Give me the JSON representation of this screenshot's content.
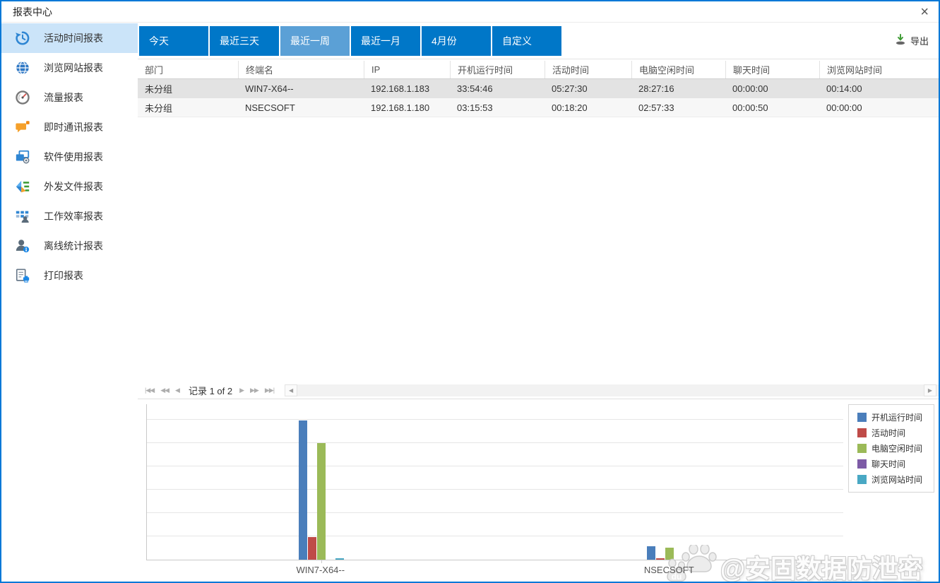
{
  "window": {
    "title": "报表中心",
    "close_glyph": "×"
  },
  "sidebar": {
    "items": [
      {
        "label": "活动时间报表",
        "icon": "history-icon",
        "selected": true
      },
      {
        "label": "浏览网站报表",
        "icon": "globe-icon",
        "selected": false
      },
      {
        "label": "流量报表",
        "icon": "gauge-icon",
        "selected": false
      },
      {
        "label": "即时通讯报表",
        "icon": "chat-icon",
        "selected": false
      },
      {
        "label": "软件使用报表",
        "icon": "software-usage-icon",
        "selected": false
      },
      {
        "label": "外发文件报表",
        "icon": "outgoing-files-icon",
        "selected": false
      },
      {
        "label": "工作效率报表",
        "icon": "work-efficiency-icon",
        "selected": false
      },
      {
        "label": "离线统计报表",
        "icon": "offline-stats-icon",
        "selected": false
      },
      {
        "label": "打印报表",
        "icon": "print-report-icon",
        "selected": false
      }
    ]
  },
  "toolbar": {
    "tabs": [
      {
        "label": "今天",
        "selected": false
      },
      {
        "label": "最近三天",
        "selected": false
      },
      {
        "label": "最近一周",
        "selected": true
      },
      {
        "label": "最近一月",
        "selected": false
      },
      {
        "label": "4月份",
        "selected": false
      },
      {
        "label": "自定义",
        "selected": false
      }
    ],
    "export_label": "导出",
    "export_icon": "download-icon"
  },
  "table": {
    "columns": [
      "部门",
      "终端名",
      "IP",
      "开机运行时间",
      "活动时间",
      "电脑空闲时间",
      "聊天时间",
      "浏览网站时间"
    ],
    "rows": [
      [
        "未分组",
        "WIN7-X64--",
        "192.168.1.183",
        "33:54:46",
        "05:27:30",
        "28:27:16",
        "00:00:00",
        "00:14:00"
      ],
      [
        "未分组",
        "NSECSOFT",
        "192.168.1.180",
        "03:15:53",
        "00:18:20",
        "02:57:33",
        "00:00:50",
        "00:00:00"
      ]
    ],
    "selected_row_index": 0
  },
  "pager": {
    "first": "|◀◀",
    "prev_page": "◀◀",
    "prev": "◀",
    "record_text": "记录 1 of 2",
    "next": "▶",
    "next_page": "▶▶",
    "last": "▶▶|",
    "scroll_left": "◀",
    "scroll_right": "▶"
  },
  "chart_data": {
    "type": "bar",
    "title": "",
    "xlabel": "",
    "ylabel": "",
    "categories": [
      "WIN7-X64--",
      "NSECSOFT"
    ],
    "series": [
      {
        "name": "开机运行时间",
        "color": "#4a7ebb",
        "values_hours": [
          33.913,
          3.265
        ],
        "values_hms": [
          "33:54:46",
          "03:15:53"
        ]
      },
      {
        "name": "活动时间",
        "color": "#bf4b48",
        "values_hours": [
          5.458,
          0.306
        ],
        "values_hms": [
          "05:27:30",
          "00:18:20"
        ]
      },
      {
        "name": "电脑空闲时间",
        "color": "#9bba58",
        "values_hours": [
          28.454,
          2.959
        ],
        "values_hms": [
          "28:27:16",
          "02:57:33"
        ]
      },
      {
        "name": "聊天时间",
        "color": "#7d5ba6",
        "values_hours": [
          0,
          0.014
        ],
        "values_hms": [
          "00:00:00",
          "00:00:50"
        ]
      },
      {
        "name": "浏览网站时间",
        "color": "#49a8c4",
        "values_hours": [
          0.233,
          0
        ],
        "values_hms": [
          "00:14:00",
          "00:00:00"
        ]
      }
    ],
    "ylim": [
      0,
      38
    ],
    "gridline_count": 6,
    "grid": true,
    "legend_position": "top-right",
    "y_axis_labels_shown": false
  },
  "watermark": {
    "paw_text": "du",
    "text": "@安固数据防泄密"
  },
  "colors": {
    "accent_blue": "#0078d7",
    "tab_blue": "#0077c8",
    "tab_selected_blue": "#5ba0d6",
    "sidebar_selected_bg": "#cbe4f9",
    "selected_row_bg": "#e3e3e3",
    "export_arrow_green": "#3f9c35"
  }
}
